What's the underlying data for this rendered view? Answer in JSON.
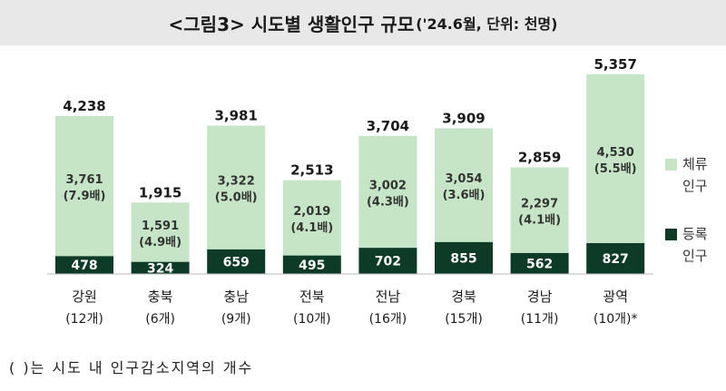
{
  "title": {
    "main": "<그림3> 시도별 생활인구 규모",
    "sub": "('24.6월, 단위: 천명)"
  },
  "footnote": "( )는 시도 내 인구감소지역의 개수",
  "colors": {
    "stay": "#c6e5c6",
    "registered": "#0d3b28",
    "text": "#1a1a1a",
    "legend_text": "#333333"
  },
  "chart_data": {
    "type": "bar",
    "stacked": true,
    "categories": [
      "강원",
      "충북",
      "충남",
      "전북",
      "전남",
      "경북",
      "경남",
      "광역"
    ],
    "category_counts": [
      "(12개)",
      "(6개)",
      "(9개)",
      "(10개)",
      "(16개)",
      "(15개)",
      "(11개)",
      "(10개)*"
    ],
    "totals": [
      "4,238",
      "1,915",
      "3,981",
      "2,513",
      "3,704",
      "3,909",
      "2,859",
      "5,357"
    ],
    "series": [
      {
        "name": "등록\n인구",
        "values": [
          478,
          324,
          659,
          495,
          702,
          855,
          562,
          827
        ],
        "labels": [
          "478",
          "324",
          "659",
          "495",
          "702",
          "855",
          "562",
          "827"
        ]
      },
      {
        "name": "체류\n인구",
        "values": [
          3761,
          1591,
          3322,
          2019,
          3002,
          3054,
          2297,
          4530
        ],
        "labels": [
          "3,761",
          "1,591",
          "3,322",
          "2,019",
          "3,002",
          "3,054",
          "2,297",
          "4,530"
        ],
        "ratios": [
          "(7.9배)",
          "(4.9배)",
          "(5.0배)",
          "(4.1배)",
          "(4.3배)",
          "(3.6배)",
          "(4.1배)",
          "(5.5배)"
        ]
      }
    ],
    "legend": [
      "체류\n인구",
      "등록\n인구"
    ],
    "grid": false
  }
}
